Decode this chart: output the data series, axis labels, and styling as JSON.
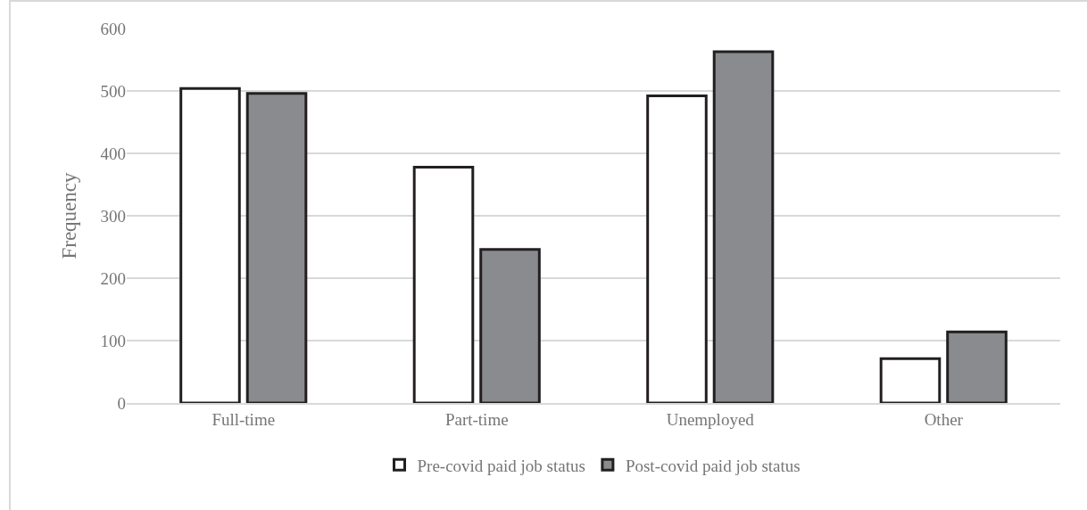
{
  "chart_data": {
    "type": "bar",
    "ylabel": "Frequency",
    "categories": [
      "Full-time",
      "Part-time",
      "Unemployed",
      "Other"
    ],
    "series": [
      {
        "name": "Pre-covid paid job status",
        "color": "#ffffff",
        "values": [
          504,
          378,
          492,
          71
        ]
      },
      {
        "name": "Post-covid paid job status",
        "color": "#8a8b8e",
        "values": [
          496,
          246,
          563,
          114
        ]
      }
    ],
    "ylim": [
      0,
      600
    ],
    "yticks": [
      0,
      100,
      200,
      300,
      400,
      500,
      600
    ],
    "grid": "y",
    "legend": "bottom"
  }
}
